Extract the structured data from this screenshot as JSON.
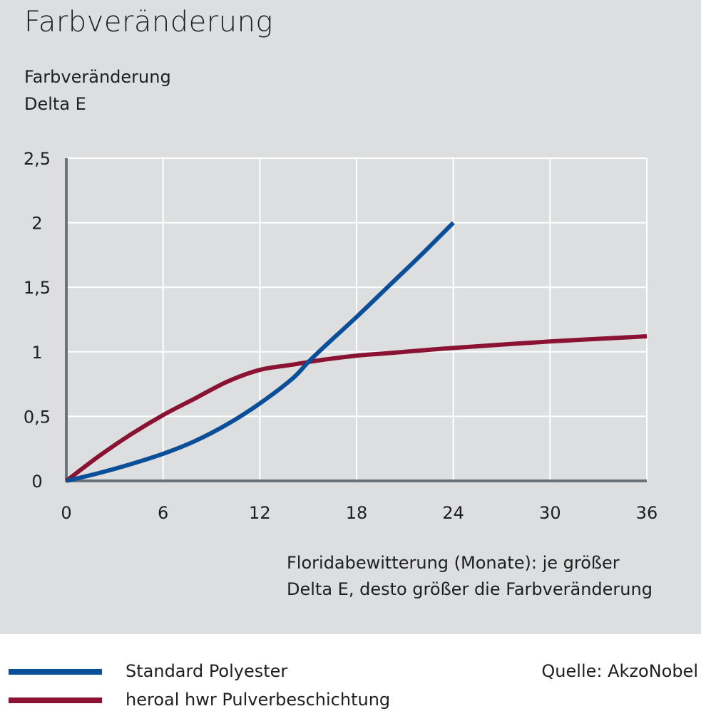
{
  "title": "Farbveränderung",
  "source": "Quelle: AkzoNobel",
  "colors": {
    "background": "#dcdedf",
    "grid": "#ffffff",
    "axis": "#6c7378",
    "series_blue": "#0b4f99",
    "series_red": "#8a1233"
  },
  "chart_data": {
    "type": "line",
    "ylabel_lines": [
      "Farbveränderung",
      "Delta E"
    ],
    "xlabel_lines": [
      "Floridabewitterung (Monate): je größer",
      "Delta E, desto größer die Farbveränderung"
    ],
    "xlim": [
      0,
      36
    ],
    "ylim": [
      0,
      2.5
    ],
    "x_ticks": [
      0,
      6,
      12,
      18,
      24,
      30,
      36
    ],
    "x_tick_labels": [
      "0",
      "6",
      "12",
      "18",
      "24",
      "30",
      "36"
    ],
    "y_ticks": [
      0,
      0.5,
      1,
      1.5,
      2,
      2.5
    ],
    "y_tick_labels": [
      "0",
      "0,5",
      "1",
      "1,5",
      "2",
      "2,5"
    ],
    "grid": true,
    "legend_position": "bottom-left",
    "series": [
      {
        "name": "Standard Polyester",
        "color": "#0b4f99",
        "x": [
          0,
          2,
          4,
          6,
          8,
          10,
          12,
          14,
          15,
          16,
          18,
          20,
          22,
          24
        ],
        "y": [
          0,
          0.06,
          0.13,
          0.21,
          0.31,
          0.44,
          0.6,
          0.79,
          0.92,
          1.04,
          1.27,
          1.51,
          1.75,
          2.0
        ]
      },
      {
        "name": "heroal hwr Pulverbeschichtung",
        "color": "#8a1233",
        "x": [
          0,
          2,
          4,
          6,
          8,
          10,
          12,
          14,
          16,
          18,
          20,
          24,
          30,
          36
        ],
        "y": [
          0,
          0.19,
          0.36,
          0.51,
          0.64,
          0.77,
          0.86,
          0.9,
          0.94,
          0.97,
          0.99,
          1.03,
          1.08,
          1.12
        ]
      }
    ]
  }
}
